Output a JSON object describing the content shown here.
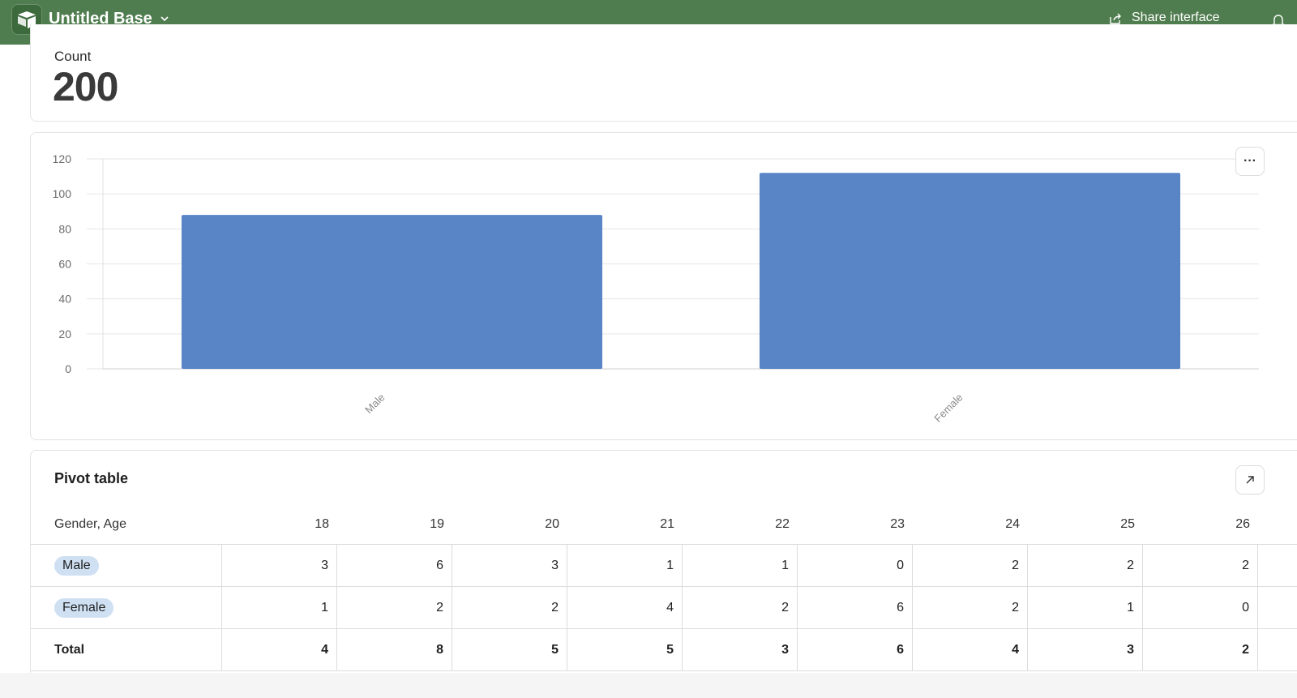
{
  "header": {
    "title": "Untitled Base",
    "share_label": "Share interface",
    "accent_color": "#507d4f"
  },
  "summary": {
    "count_label": "Count",
    "count_value": "200"
  },
  "chart_data": {
    "type": "bar",
    "categories": [
      "Male",
      "Female"
    ],
    "values": [
      88,
      112
    ],
    "ylim": [
      0,
      120
    ],
    "yticks": [
      0,
      20,
      40,
      60,
      80,
      100,
      120
    ],
    "title": "",
    "xlabel": "",
    "ylabel": "",
    "grid": true,
    "bar_color": "#5985c7"
  },
  "pivot": {
    "title": "Pivot table",
    "row_header": "Gender, Age",
    "columns": [
      "18",
      "19",
      "20",
      "21",
      "22",
      "23",
      "24",
      "25",
      "26"
    ],
    "rows": [
      {
        "label": "Male",
        "values": [
          "3",
          "6",
          "3",
          "1",
          "1",
          "0",
          "2",
          "2",
          "2"
        ]
      },
      {
        "label": "Female",
        "values": [
          "1",
          "2",
          "2",
          "4",
          "2",
          "6",
          "2",
          "1",
          "0"
        ]
      }
    ],
    "total": {
      "label": "Total",
      "values": [
        "4",
        "8",
        "5",
        "5",
        "3",
        "6",
        "4",
        "3",
        "2"
      ]
    }
  },
  "icons": [
    "base-logo-icon",
    "chevron-down-icon",
    "share-icon",
    "bell-icon",
    "more-icon",
    "expand-icon"
  ]
}
